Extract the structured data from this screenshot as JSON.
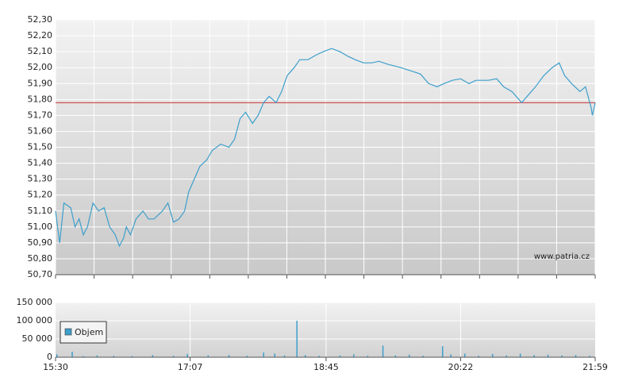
{
  "chart_data": [
    {
      "type": "line",
      "color": "#3d9fcb",
      "x": [
        "15:30",
        "15:33",
        "15:36",
        "15:41",
        "15:44",
        "15:47",
        "15:50",
        "15:53",
        "15:57",
        "16:01",
        "16:05",
        "16:09",
        "16:13",
        "16:16",
        "16:19",
        "16:21",
        "16:24",
        "16:28",
        "16:33",
        "16:37",
        "16:41",
        "16:47",
        "16:51",
        "16:55",
        "16:59",
        "17:03",
        "17:06",
        "17:10",
        "17:14",
        "17:19",
        "17:23",
        "17:29",
        "17:35",
        "17:39",
        "17:43",
        "17:47",
        "17:52",
        "17:56",
        "18:00",
        "18:04",
        "18:09",
        "18:13",
        "18:17",
        "18:22",
        "18:26",
        "18:32",
        "18:38",
        "18:43",
        "18:49",
        "18:55",
        "19:01",
        "19:06",
        "19:12",
        "19:18",
        "19:23",
        "19:30",
        "19:39",
        "19:46",
        "19:53",
        "19:59",
        "20:05",
        "20:10",
        "20:16",
        "20:22",
        "20:28",
        "20:33",
        "20:42",
        "20:48",
        "20:53",
        "20:59",
        "21:06",
        "21:10",
        "21:16",
        "21:22",
        "21:28",
        "21:33",
        "21:37",
        "21:42",
        "21:48",
        "21:52",
        "21:56",
        "21:57",
        "21:59"
      ],
      "values": [
        51.1,
        50.9,
        51.15,
        51.12,
        51.0,
        51.05,
        50.95,
        51.0,
        51.15,
        51.1,
        51.12,
        51.0,
        50.95,
        50.88,
        50.93,
        51.0,
        50.95,
        51.05,
        51.1,
        51.05,
        51.05,
        51.1,
        51.15,
        51.03,
        51.05,
        51.1,
        51.22,
        51.3,
        51.38,
        51.42,
        51.48,
        51.52,
        51.5,
        51.55,
        51.68,
        51.72,
        51.65,
        51.7,
        51.78,
        51.82,
        51.78,
        51.85,
        51.95,
        52.0,
        52.05,
        52.05,
        52.08,
        52.1,
        52.12,
        52.1,
        52.07,
        52.05,
        52.03,
        52.03,
        52.04,
        52.02,
        52.0,
        51.98,
        51.96,
        51.9,
        51.88,
        51.9,
        51.92,
        51.93,
        51.9,
        51.92,
        51.92,
        51.93,
        51.88,
        51.85,
        51.78,
        51.82,
        51.88,
        51.95,
        52.0,
        52.03,
        51.95,
        51.9,
        51.85,
        51.88,
        51.75,
        51.7,
        51.78
      ],
      "xlim": [
        "15:30",
        "21:59"
      ],
      "ylim": [
        50.7,
        52.3
      ],
      "yticks": [
        {
          "value": 50.7,
          "label": "50,70"
        },
        {
          "value": 50.8,
          "label": "50,80"
        },
        {
          "value": 50.9,
          "label": "50,90"
        },
        {
          "value": 51.0,
          "label": "51,00"
        },
        {
          "value": 51.1,
          "label": "51,10"
        },
        {
          "value": 51.2,
          "label": "51,20"
        },
        {
          "value": 51.3,
          "label": "51,30"
        },
        {
          "value": 51.4,
          "label": "51,40"
        },
        {
          "value": 51.5,
          "label": "51,50"
        },
        {
          "value": 51.6,
          "label": "51,60"
        },
        {
          "value": 51.7,
          "label": "51,70"
        },
        {
          "value": 51.8,
          "label": "51,80"
        },
        {
          "value": 51.9,
          "label": "51,90"
        },
        {
          "value": 52.0,
          "label": "52,00"
        },
        {
          "value": 52.1,
          "label": "52,10"
        },
        {
          "value": 52.2,
          "label": "52,20"
        },
        {
          "value": 52.3,
          "label": "52,30"
        }
      ],
      "reference_line": 51.78,
      "reference_color": "#cc3333",
      "annotation": "www.patria.cz",
      "grid": true
    },
    {
      "type": "bar",
      "x": [
        "15:31",
        "15:42",
        "15:50",
        "16:00",
        "16:12",
        "16:25",
        "16:40",
        "16:55",
        "17:05",
        "17:20",
        "17:35",
        "17:48",
        "18:00",
        "18:08",
        "18:15",
        "18:24",
        "18:30",
        "18:40",
        "18:55",
        "19:05",
        "19:15",
        "19:26",
        "19:35",
        "19:45",
        "19:55",
        "20:09",
        "20:15",
        "20:25",
        "20:35",
        "20:45",
        "20:55",
        "21:05",
        "21:15",
        "21:25",
        "21:35",
        "21:45",
        "21:55"
      ],
      "series": [
        {
          "name": "Objem",
          "color": "#3d9fcb",
          "values": [
            8000,
            15000,
            3000,
            5000,
            4000,
            3000,
            6000,
            4000,
            9000,
            5000,
            6000,
            4000,
            13000,
            10000,
            5000,
            100000,
            6000,
            4000,
            5000,
            8000,
            4000,
            32000,
            5000,
            7000,
            4000,
            30000,
            8000,
            10000,
            4000,
            9000,
            5000,
            10000,
            6000,
            7000,
            5000,
            6000,
            4000
          ]
        }
      ],
      "xlim": [
        "15:30",
        "21:59"
      ],
      "xticks": [
        "15:30",
        "17:07",
        "18:45",
        "20:22",
        "21:59"
      ],
      "ylim": [
        0,
        150000
      ],
      "yticks": [
        0,
        {
          "value": 50000,
          "label": "50 000"
        },
        {
          "value": 100000,
          "label": "100 000"
        },
        {
          "value": 150000,
          "label": "150 000"
        }
      ],
      "grid": true
    }
  ]
}
